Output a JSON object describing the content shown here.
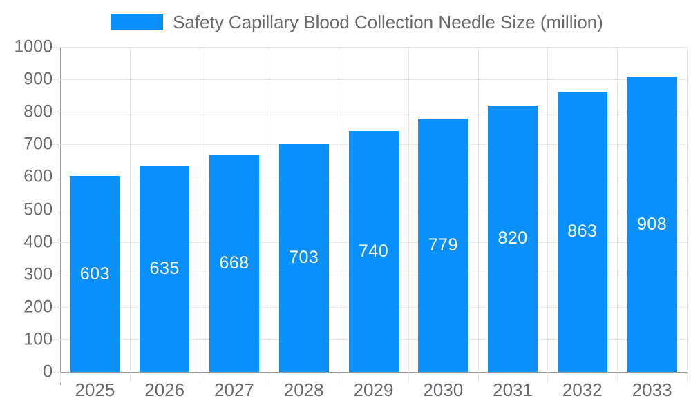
{
  "chart_data": {
    "type": "bar",
    "title": "Safety Capillary Blood Collection Needle Size (million)",
    "categories": [
      "2025",
      "2026",
      "2027",
      "2028",
      "2029",
      "2030",
      "2031",
      "2032",
      "2033"
    ],
    "values": [
      603,
      635,
      668,
      703,
      740,
      779,
      820,
      863,
      908
    ],
    "xlabel": "",
    "ylabel": "",
    "ylim": [
      0,
      1000
    ],
    "ytick_step": 100,
    "ytick_labels": [
      "0",
      "100",
      "200",
      "300",
      "400",
      "500",
      "600",
      "700",
      "800",
      "900",
      "1000"
    ],
    "grid": "on",
    "legend_position": "top",
    "legend_entries": [
      "Safety Capillary Blood Collection Needle Size (million)"
    ],
    "colors": {
      "bar": "#0a90fa",
      "bar_value_label": "#ffffff",
      "axis_line": "#9a9a9a",
      "grid_line": "#e6e6e6",
      "axis_text": "#66696d"
    }
  }
}
